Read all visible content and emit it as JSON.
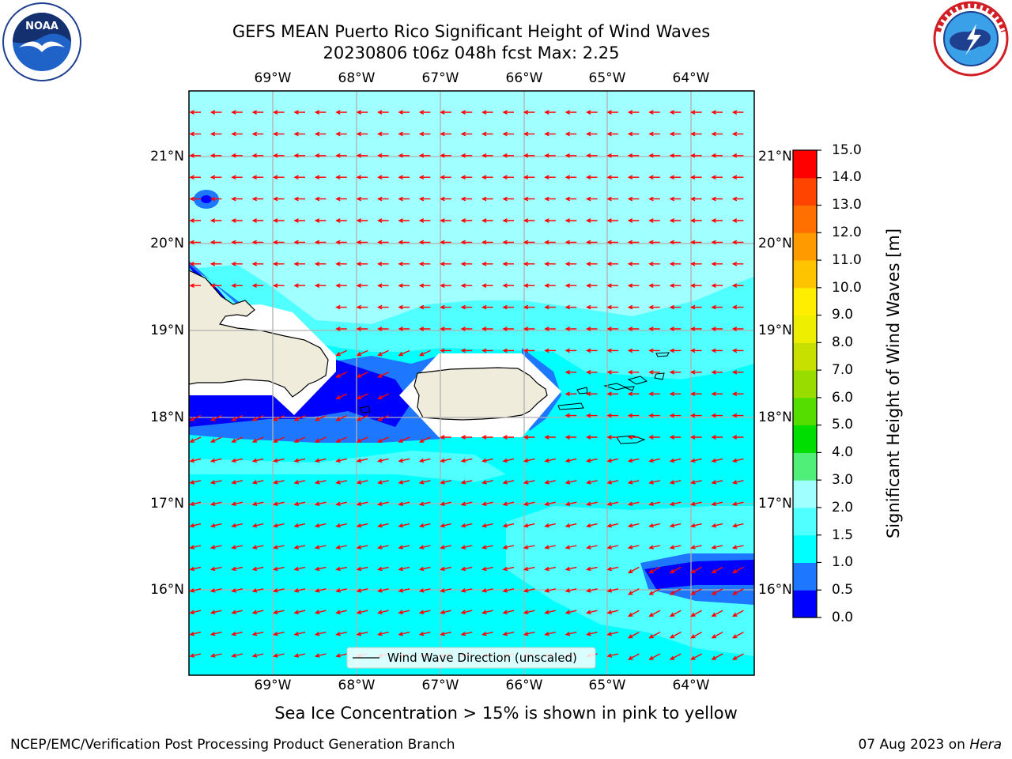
{
  "header": {
    "title_line1": "GEFS MEAN Puerto Rico Significant Height of Wind Waves",
    "title_line2": "20230806 t06z 048h fcst   Max: 2.25"
  },
  "logos": {
    "left": {
      "text": "NOAA",
      "icon": "noaa-seagull-icon",
      "color": "#1f3f8f"
    },
    "right": {
      "icon": "nws-storm-icon",
      "color": "#d21f26"
    }
  },
  "map": {
    "lon_labels": [
      "69°W",
      "68°W",
      "67°W",
      "66°W",
      "65°W",
      "64°W"
    ],
    "lat_labels": [
      "21°N",
      "20°N",
      "19°N",
      "18°N",
      "17°N",
      "16°N"
    ],
    "legend_label": "Wind Wave Direction (unscaled)",
    "arrow_color": "#ff0000",
    "land_color": "#efecdc"
  },
  "colorbar": {
    "title": "Significant Height of Wind Waves [m]",
    "ticks": [
      "0.0",
      "0.5",
      "1.0",
      "1.5",
      "2.0",
      "3.0",
      "4.0",
      "5.0",
      "6.0",
      "7.0",
      "8.0",
      "9.0",
      "10.0",
      "11.0",
      "12.0",
      "13.0",
      "14.0",
      "15.0"
    ],
    "colors": [
      "#0000ff",
      "#1e78ff",
      "#00ffff",
      "#50ffff",
      "#a0ffff",
      "#50f078",
      "#00dd00",
      "#55dd00",
      "#99dd00",
      "#c8e000",
      "#eeee00",
      "#ffee00",
      "#ffc400",
      "#ff9a00",
      "#ff7000",
      "#ff4400",
      "#ff0000"
    ]
  },
  "footer": {
    "caption": "Sea Ice Concentration > 15% is shown in pink to yellow",
    "credit": "NCEP/EMC/Verification Post Processing Product Generation Branch",
    "date_prefix": "07 Aug 2023 on ",
    "date_machine": "Hera"
  }
}
